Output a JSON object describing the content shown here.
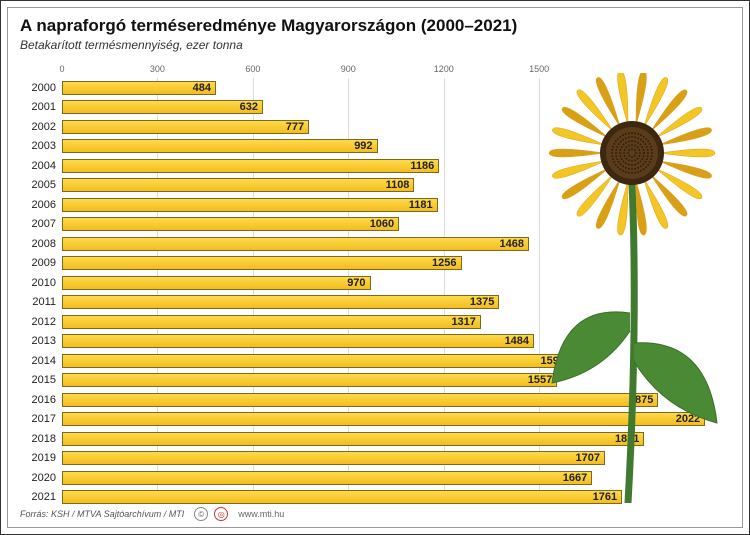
{
  "title": "A napraforgó terméseredménye Magyarországon (2000–2021)",
  "subtitle": "Betakarított termésmennyiség, ezer tonna",
  "chart": {
    "type": "horizontal-bar",
    "xmax": 2100,
    "xticks": [
      0,
      300,
      600,
      900,
      1200,
      1500
    ],
    "bar_color_top": "#ffd94a",
    "bar_color_bottom": "#f3bd1f",
    "bar_border": "#7a6a20",
    "grid_color": "#dddddd",
    "background": "#ffffff",
    "label_fontsize": 11,
    "tick_fontsize": 9,
    "data": [
      {
        "year": 2000,
        "value": 484
      },
      {
        "year": 2001,
        "value": 632
      },
      {
        "year": 2002,
        "value": 777
      },
      {
        "year": 2003,
        "value": 992
      },
      {
        "year": 2004,
        "value": 1186
      },
      {
        "year": 2005,
        "value": 1108
      },
      {
        "year": 2006,
        "value": 1181
      },
      {
        "year": 2007,
        "value": 1060
      },
      {
        "year": 2008,
        "value": 1468
      },
      {
        "year": 2009,
        "value": 1256
      },
      {
        "year": 2010,
        "value": 970
      },
      {
        "year": 2011,
        "value": 1375
      },
      {
        "year": 2012,
        "value": 1317
      },
      {
        "year": 2013,
        "value": 1484
      },
      {
        "year": 2014,
        "value": 1597
      },
      {
        "year": 2015,
        "value": 1557
      },
      {
        "year": 2016,
        "value": 1875
      },
      {
        "year": 2017,
        "value": 2022
      },
      {
        "year": 2018,
        "value": 1831
      },
      {
        "year": 2019,
        "value": 1707
      },
      {
        "year": 2020,
        "value": 1667
      },
      {
        "year": 2021,
        "value": 1761
      }
    ]
  },
  "footer": {
    "source": "Forrás: KSH / MTVA Sajtóarchívum / MTI",
    "url": "www.mti.hu"
  },
  "decor": {
    "sunflower": {
      "petal_color": "#f4c625",
      "petal_shadow": "#d9a017",
      "center_color": "#5a3b1a",
      "center_ring": "#3d2710",
      "stem_color": "#3f7a2f",
      "leaf_color": "#4b8a34",
      "leaf_dark": "#3a6f28"
    }
  }
}
